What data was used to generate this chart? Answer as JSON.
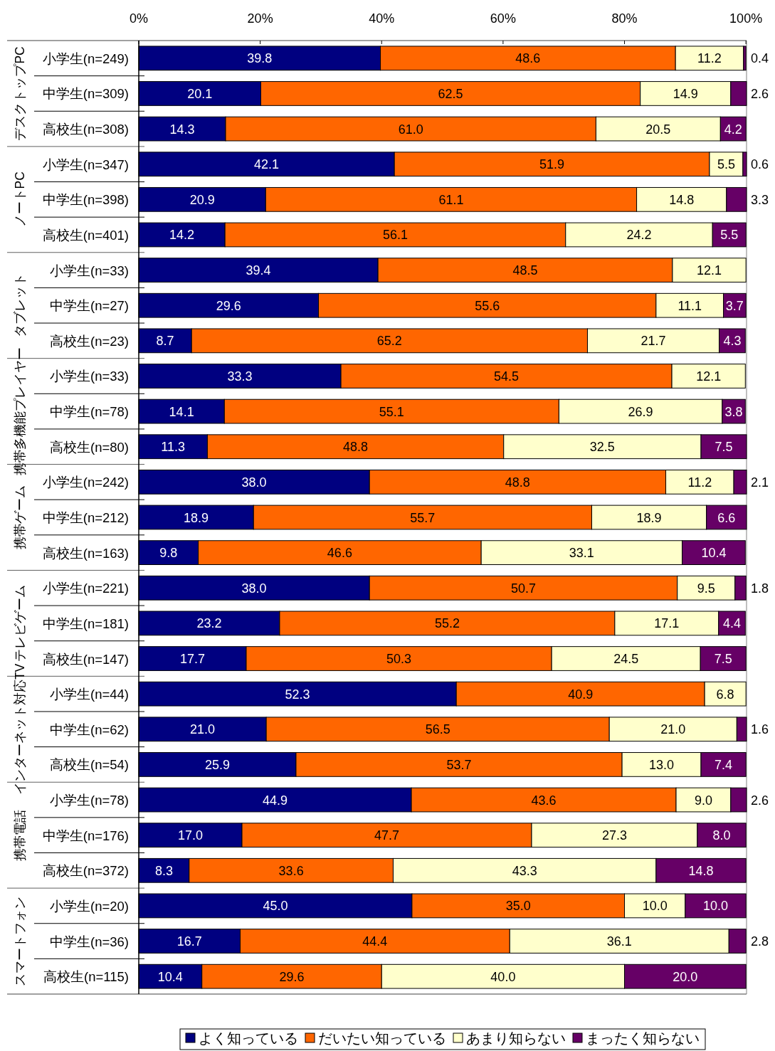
{
  "chart_data": {
    "type": "bar",
    "orientation": "horizontal",
    "stacked": true,
    "categories": [
      "小学生(n=249)",
      "中学生(n=309)",
      "高校生(n=308)",
      "小学生(n=347)",
      "中学生(n=398)",
      "高校生(n=401)",
      "小学生(n=33)",
      "中学生(n=27)",
      "高校生(n=23)",
      "小学生(n=33)",
      "中学生(n=78)",
      "高校生(n=80)",
      "小学生(n=242)",
      "中学生(n=212)",
      "高校生(n=163)",
      "小学生(n=221)",
      "中学生(n=181)",
      "高校生(n=147)",
      "小学生(n=44)",
      "中学生(n=62)",
      "高校生(n=54)",
      "小学生(n=78)",
      "中学生(n=176)",
      "高校生(n=372)",
      "小学生(n=20)",
      "中学生(n=36)",
      "高校生(n=115)"
    ],
    "annotations": [
      "デスクトップPC",
      "ノートPC",
      "タブレット",
      "携帯多機能プレイヤー",
      "携帯ゲーム",
      "テレビゲーム",
      "インターネット対応TV",
      "携帯電話",
      "スマートフォン"
    ],
    "series": [
      {
        "name": "よく知っている",
        "color": "#000080",
        "values": [
          39.8,
          20.1,
          14.3,
          42.1,
          20.9,
          14.2,
          39.4,
          29.6,
          8.7,
          33.3,
          14.1,
          11.3,
          38.0,
          18.9,
          9.8,
          38.0,
          23.2,
          17.7,
          52.3,
          21.0,
          25.9,
          44.9,
          17.0,
          8.3,
          45.0,
          16.7,
          10.4
        ],
        "value_labels": [
          "39.8",
          "20.1",
          "14.3",
          "42.1",
          "20.9",
          "14.2",
          "39.4",
          "29.6",
          "8.7",
          "33.3",
          "14.1",
          "11.3",
          "38.0",
          "18.9",
          "9.8",
          "38.0",
          "23.2",
          "17.7",
          "52.3",
          "21.0",
          "25.9",
          "44.9",
          "17.0",
          "8.3",
          "45.0",
          "16.7",
          "10.4"
        ]
      },
      {
        "name": "だいたい知っている",
        "color": "#ff6600",
        "values": [
          48.6,
          62.5,
          61.0,
          51.9,
          61.1,
          56.1,
          48.5,
          55.6,
          65.2,
          54.5,
          55.1,
          48.8,
          48.8,
          55.7,
          46.6,
          50.7,
          55.2,
          50.3,
          40.9,
          56.5,
          53.7,
          43.6,
          47.7,
          33.6,
          35.0,
          44.4,
          29.6
        ],
        "value_labels": [
          "48.6",
          "62.5",
          "61.0",
          "51.9",
          "61.1",
          "56.1",
          "48.5",
          "55.6",
          "65.2",
          "54.5",
          "55.1",
          "48.8",
          "48.8",
          "55.7",
          "46.6",
          "50.7",
          "55.2",
          "50.3",
          "40.9",
          "56.5",
          "53.7",
          "43.6",
          "47.7",
          "33.6",
          "35.0",
          "44.4",
          "29.6"
        ]
      },
      {
        "name": "あまり知らない",
        "color": "#ffffcc",
        "values": [
          11.2,
          14.9,
          20.5,
          5.5,
          14.8,
          24.2,
          12.1,
          11.1,
          21.7,
          12.1,
          26.9,
          32.5,
          11.2,
          18.9,
          33.1,
          9.5,
          17.1,
          24.5,
          6.8,
          21.0,
          13.0,
          9.0,
          27.3,
          43.3,
          10.0,
          36.1,
          40.0
        ],
        "value_labels": [
          "11.2",
          "14.9",
          "20.5",
          "5.5",
          "14.8",
          "24.2",
          "12.1",
          "11.1",
          "21.7",
          "12.1",
          "26.9",
          "32.5",
          "11.2",
          "18.9",
          "33.1",
          "9.5",
          "17.1",
          "24.5",
          "6.8",
          "21.0",
          "13.0",
          "9.0",
          "27.3",
          "43.3",
          "10.0",
          "36.1",
          "40.0"
        ]
      },
      {
        "name": "まったく知らない",
        "color": "#660066",
        "values": [
          0.4,
          2.6,
          4.2,
          0.6,
          3.3,
          5.5,
          0,
          3.7,
          4.3,
          0,
          3.8,
          7.5,
          2.1,
          6.6,
          10.4,
          1.8,
          4.4,
          7.5,
          0,
          1.6,
          7.4,
          2.6,
          8.0,
          14.8,
          10.0,
          2.8,
          20.0
        ],
        "value_labels": [
          "0.4",
          "2.6",
          "4.2",
          "0.6",
          "3.3",
          "5.5",
          null,
          "3.7",
          "4.3",
          null,
          "3.8",
          "7.5",
          "2.1",
          "6.6",
          "10.4",
          "1.8",
          "4.4",
          "7.5",
          null,
          "1.6",
          "7.4",
          "2.6",
          "8.0",
          "14.8",
          "10.0",
          "2.8",
          "20.0"
        ]
      }
    ],
    "xlim": [
      0,
      100.1
    ],
    "xticks": [
      {
        "value": 0,
        "label": "0%"
      },
      {
        "value": 20,
        "label": "20%"
      },
      {
        "value": 40,
        "label": "40%"
      },
      {
        "value": 60,
        "label": "60%"
      },
      {
        "value": 80,
        "label": "80%"
      },
      {
        "value": 100,
        "label": "100%"
      }
    ],
    "legend": "bottom"
  }
}
